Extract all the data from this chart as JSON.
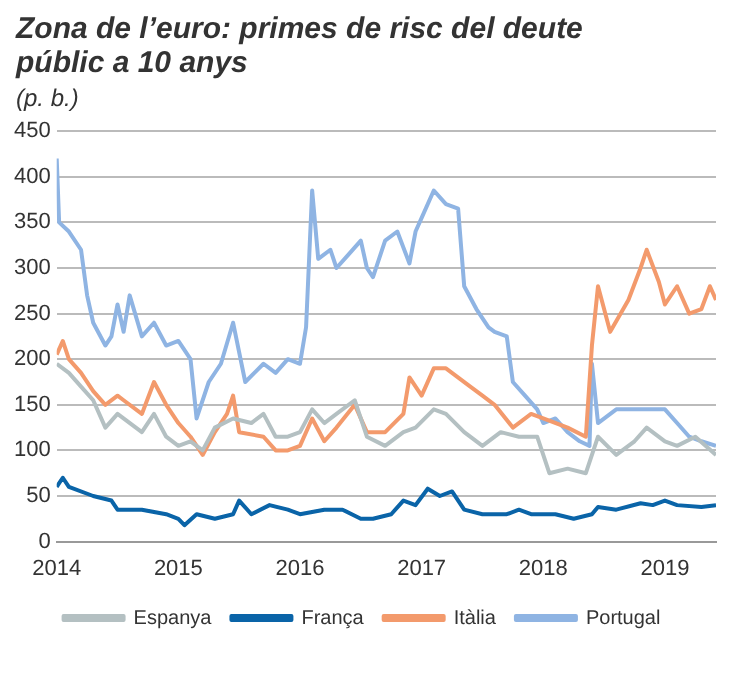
{
  "chart_data": {
    "type": "line",
    "title": "Zona de l’euro: primes de risc del deute públic a 10 anys",
    "subtitle": "(p. b.)",
    "xlim": [
      2014,
      2019.42
    ],
    "xticks": [
      2014,
      2015,
      2016,
      2017,
      2018,
      2019
    ],
    "ylim": [
      0,
      450
    ],
    "yticks": [
      0,
      50,
      100,
      150,
      200,
      250,
      300,
      350,
      400,
      450
    ],
    "grid": "y",
    "legend": "bottom",
    "marker": "none",
    "line_style": "solid",
    "series": [
      {
        "name": "Espanya",
        "color": "#b4c0c2",
        "x": [
          2014.0,
          2014.1,
          2014.2,
          2014.3,
          2014.4,
          2014.5,
          2014.7,
          2014.8,
          2014.9,
          2015.0,
          2015.1,
          2015.2,
          2015.3,
          2015.45,
          2015.6,
          2015.7,
          2015.8,
          2015.9,
          2016.0,
          2016.1,
          2016.2,
          2016.3,
          2016.45,
          2016.55,
          2016.7,
          2016.85,
          2016.95,
          2017.1,
          2017.2,
          2017.35,
          2017.5,
          2017.65,
          2017.8,
          2017.95,
          2018.05,
          2018.2,
          2018.35,
          2018.45,
          2018.6,
          2018.75,
          2018.85,
          2019.0,
          2019.1,
          2019.25,
          2019.42
        ],
        "values": [
          195,
          185,
          170,
          155,
          125,
          140,
          120,
          140,
          115,
          105,
          110,
          100,
          125,
          135,
          130,
          140,
          115,
          115,
          120,
          145,
          130,
          140,
          155,
          115,
          105,
          120,
          125,
          145,
          140,
          120,
          105,
          120,
          115,
          115,
          75,
          80,
          75,
          115,
          95,
          110,
          125,
          110,
          105,
          115,
          95
        ]
      },
      {
        "name": "França",
        "color": "#0a64a8",
        "x": [
          2014.0,
          2014.05,
          2014.1,
          2014.3,
          2014.45,
          2014.5,
          2014.7,
          2014.9,
          2015.0,
          2015.05,
          2015.15,
          2015.3,
          2015.45,
          2015.5,
          2015.6,
          2015.75,
          2015.9,
          2016.0,
          2016.2,
          2016.35,
          2016.5,
          2016.6,
          2016.75,
          2016.85,
          2016.95,
          2017.05,
          2017.15,
          2017.25,
          2017.35,
          2017.5,
          2017.7,
          2017.8,
          2017.9,
          2018.1,
          2018.25,
          2018.4,
          2018.45,
          2018.6,
          2018.8,
          2018.9,
          2019.0,
          2019.1,
          2019.3,
          2019.42
        ],
        "values": [
          60,
          70,
          60,
          50,
          45,
          35,
          35,
          30,
          25,
          18,
          30,
          25,
          30,
          45,
          30,
          40,
          35,
          30,
          35,
          35,
          25,
          25,
          30,
          45,
          40,
          58,
          50,
          55,
          35,
          30,
          30,
          35,
          30,
          30,
          25,
          30,
          38,
          35,
          42,
          40,
          45,
          40,
          38,
          40
        ]
      },
      {
        "name": "Itàlia",
        "color": "#f39a6c",
        "x": [
          2014.0,
          2014.05,
          2014.1,
          2014.2,
          2014.3,
          2014.4,
          2014.5,
          2014.55,
          2014.7,
          2014.8,
          2014.9,
          2015.0,
          2015.1,
          2015.2,
          2015.3,
          2015.4,
          2015.45,
          2015.5,
          2015.7,
          2015.8,
          2015.9,
          2016.0,
          2016.1,
          2016.2,
          2016.3,
          2016.45,
          2016.55,
          2016.7,
          2016.85,
          2016.9,
          2017.0,
          2017.1,
          2017.2,
          2017.4,
          2017.5,
          2017.6,
          2017.75,
          2017.9,
          2018.0,
          2018.2,
          2018.35,
          2018.4,
          2018.45,
          2018.55,
          2018.7,
          2018.8,
          2018.85,
          2018.95,
          2019.0,
          2019.1,
          2019.2,
          2019.3,
          2019.37,
          2019.42
        ],
        "values": [
          205,
          220,
          200,
          185,
          165,
          150,
          160,
          155,
          140,
          175,
          150,
          130,
          115,
          95,
          120,
          140,
          160,
          120,
          115,
          100,
          100,
          105,
          135,
          110,
          125,
          150,
          120,
          120,
          140,
          180,
          160,
          190,
          190,
          170,
          160,
          150,
          125,
          140,
          135,
          125,
          115,
          215,
          280,
          230,
          265,
          300,
          320,
          285,
          260,
          280,
          250,
          255,
          280,
          265
        ]
      },
      {
        "name": "Portugal",
        "color": "#8fb4e3",
        "x": [
          2014.0,
          2014.02,
          2014.1,
          2014.2,
          2014.25,
          2014.3,
          2014.4,
          2014.45,
          2014.5,
          2014.55,
          2014.6,
          2014.7,
          2014.8,
          2014.9,
          2015.0,
          2015.1,
          2015.15,
          2015.25,
          2015.35,
          2015.45,
          2015.55,
          2015.7,
          2015.8,
          2015.9,
          2016.0,
          2016.05,
          2016.1,
          2016.15,
          2016.25,
          2016.3,
          2016.4,
          2016.5,
          2016.55,
          2016.6,
          2016.7,
          2016.8,
          2016.9,
          2016.95,
          2017.0,
          2017.1,
          2017.2,
          2017.3,
          2017.35,
          2017.45,
          2017.55,
          2017.6,
          2017.7,
          2017.75,
          2017.85,
          2017.95,
          2018.0,
          2018.1,
          2018.2,
          2018.3,
          2018.38,
          2018.4,
          2018.45,
          2018.6,
          2018.8,
          2019.0,
          2019.1,
          2019.2,
          2019.3,
          2019.42
        ],
        "values": [
          420,
          350,
          340,
          320,
          270,
          240,
          215,
          225,
          260,
          230,
          270,
          225,
          240,
          215,
          220,
          200,
          135,
          175,
          195,
          240,
          175,
          195,
          185,
          200,
          195,
          235,
          385,
          310,
          320,
          300,
          315,
          330,
          300,
          290,
          330,
          340,
          305,
          340,
          355,
          385,
          370,
          365,
          280,
          255,
          235,
          230,
          225,
          175,
          160,
          145,
          130,
          135,
          120,
          110,
          105,
          195,
          130,
          145,
          145,
          145,
          130,
          115,
          110,
          105
        ]
      }
    ]
  }
}
